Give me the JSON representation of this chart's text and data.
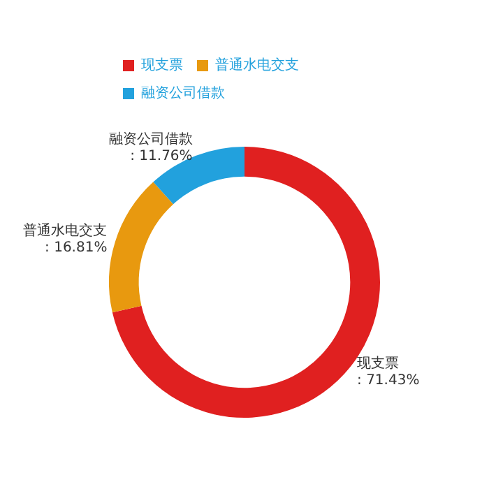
{
  "chart_data": {
    "type": "donut",
    "categories": [
      "现支票",
      "普通水电交支",
      "融资公司借款"
    ],
    "values": [
      71.43,
      16.81,
      11.76
    ],
    "colors": [
      "#e02020",
      "#e8990f",
      "#22a1dd"
    ],
    "legend": "top left",
    "value_labels": [
      ": 71.43%",
      ": 16.81%",
      ": 11.76%"
    ]
  }
}
